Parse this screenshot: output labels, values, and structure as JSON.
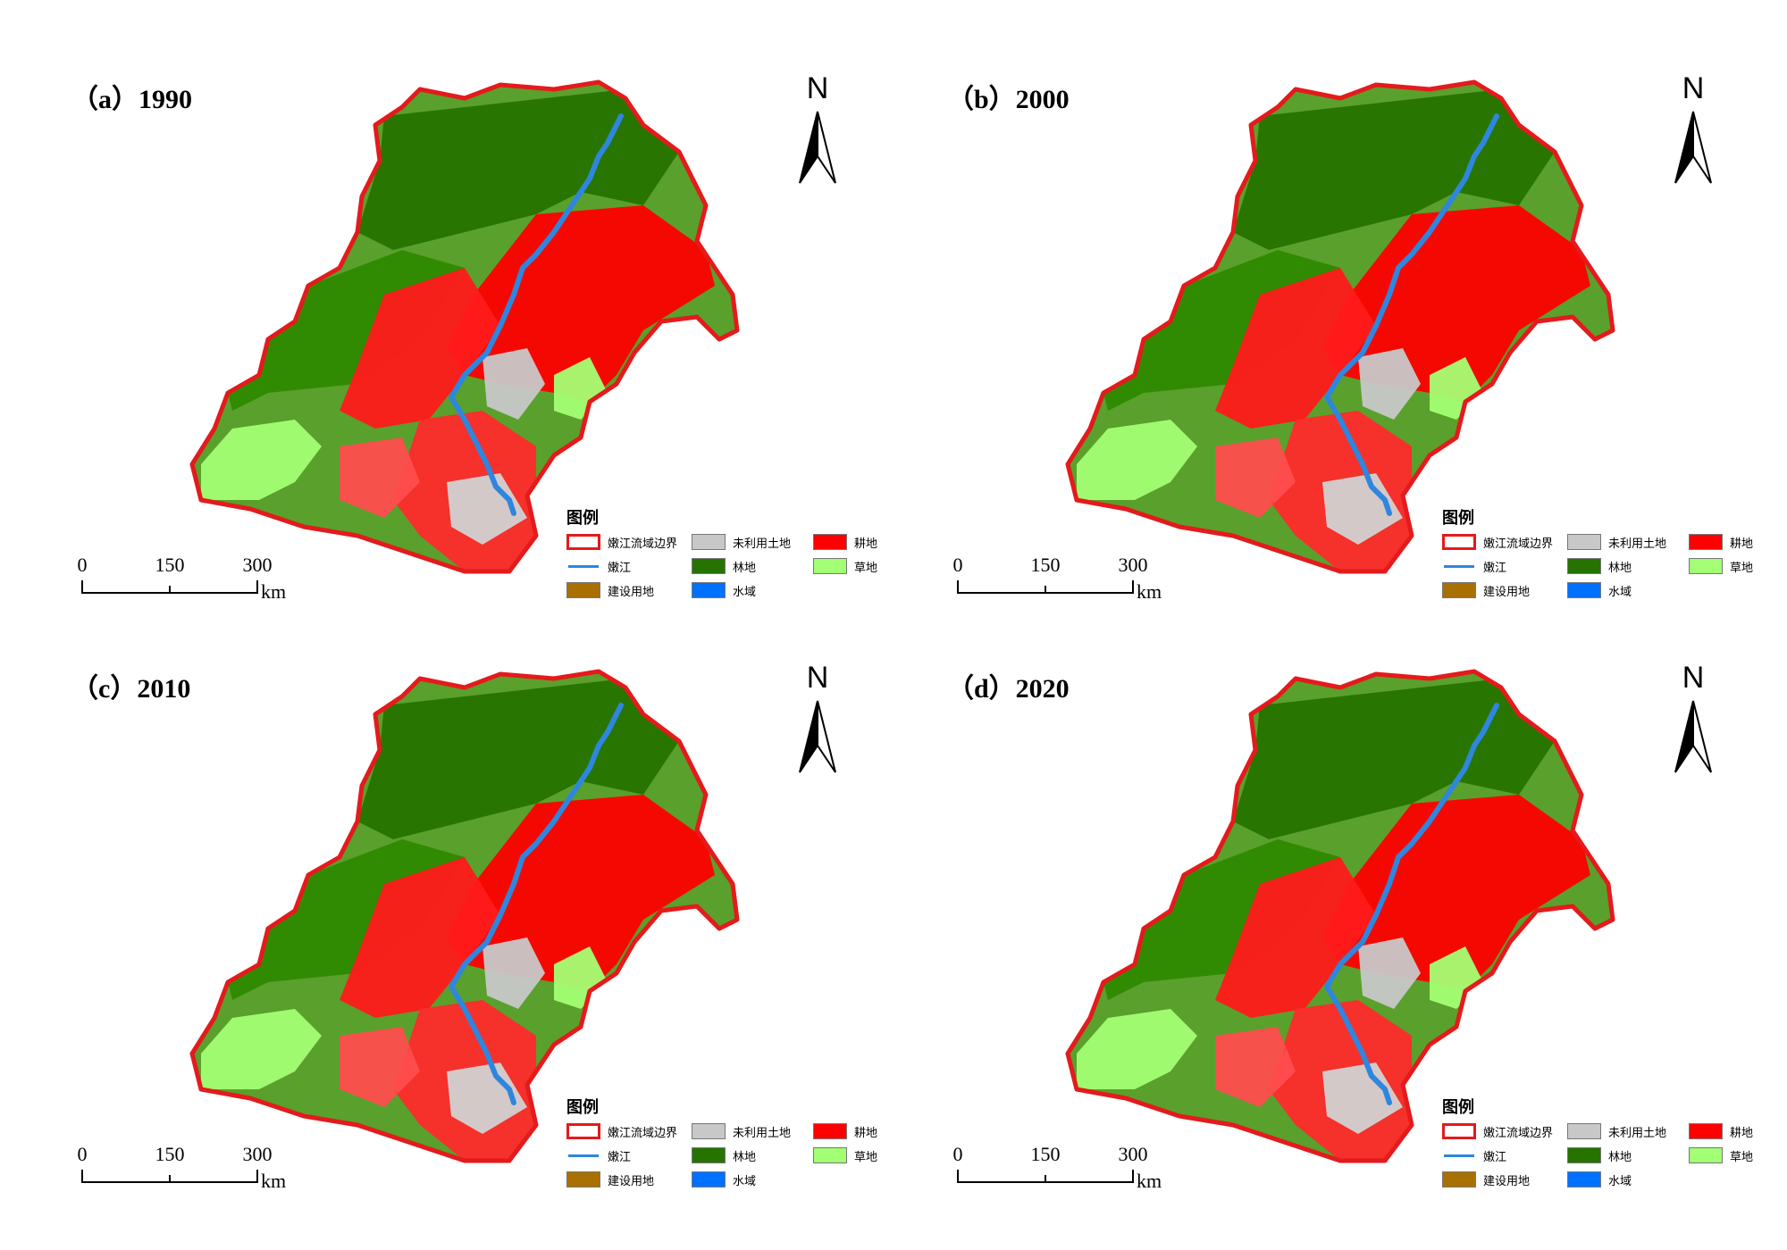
{
  "panels": [
    {
      "id": "a",
      "title": "（a）1990"
    },
    {
      "id": "b",
      "title": "（b）2000"
    },
    {
      "id": "c",
      "title": "（c）2010"
    },
    {
      "id": "d",
      "title": "（d）2020"
    }
  ],
  "north_label": "N",
  "scale": {
    "ticks": [
      "0",
      "150",
      "300"
    ],
    "unit": "km"
  },
  "legend": {
    "title": "图例",
    "items": [
      {
        "label": "嫩江流域边界",
        "kind": "boundary",
        "color": "#e41a1c"
      },
      {
        "label": "未利用土地",
        "kind": "fill",
        "color": "#c8c8c8"
      },
      {
        "label": "耕地",
        "kind": "fill",
        "color": "#ff0000"
      },
      {
        "label": "嫩江",
        "kind": "river",
        "color": "#2e86de"
      },
      {
        "label": "林地",
        "kind": "fill",
        "color": "#267300"
      },
      {
        "label": "草地",
        "kind": "fill",
        "color": "#a3ff73"
      },
      {
        "label": "建设用地",
        "kind": "fill",
        "color": "#a87000"
      },
      {
        "label": "水域",
        "kind": "fill",
        "color": "#0070ff"
      }
    ]
  }
}
